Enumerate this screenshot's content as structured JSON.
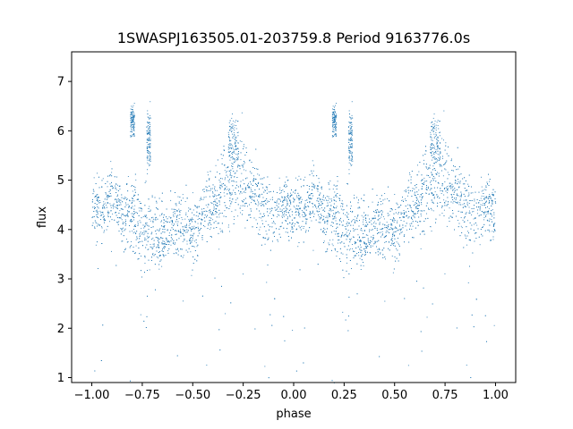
{
  "chart_data": {
    "type": "scatter",
    "title": "1SWASPJ163505.01-203759.8 Period 9163776.0s",
    "xlabel": "phase",
    "ylabel": "flux",
    "xlim": [
      -1.1,
      1.1
    ],
    "ylim": [
      0.9,
      7.6
    ],
    "x_ticks": [
      -1.0,
      -0.75,
      -0.5,
      -0.25,
      0.0,
      0.25,
      0.5,
      0.75,
      1.0
    ],
    "x_tick_labels": [
      "−1.00",
      "−0.75",
      "−0.50",
      "−0.25",
      "0.00",
      "0.25",
      "0.50",
      "0.75",
      "1.00"
    ],
    "y_ticks": [
      1,
      2,
      3,
      4,
      5,
      6,
      7
    ],
    "y_tick_labels": [
      "1",
      "2",
      "3",
      "4",
      "5",
      "6",
      "7"
    ],
    "grid": false,
    "series_color": "#1f77b4",
    "profile": {
      "phase": [
        0.0,
        0.05,
        0.1,
        0.15,
        0.2,
        0.25,
        0.3,
        0.35,
        0.4,
        0.45,
        0.5,
        0.55,
        0.6,
        0.65,
        0.7,
        0.75,
        0.8,
        0.85,
        0.9,
        0.95,
        1.0
      ],
      "flux": [
        4.4,
        4.4,
        4.7,
        4.2,
        4.3,
        4.0,
        4.0,
        3.9,
        4.1,
        4.2,
        3.8,
        4.4,
        4.5,
        4.8,
        5.1,
        5.0,
        4.7,
        4.4,
        4.3,
        4.5,
        4.3
      ],
      "scatter": [
        0.5,
        0.6,
        0.5,
        0.6,
        0.7,
        0.8,
        0.7,
        0.6,
        0.6,
        0.6,
        0.6,
        0.6,
        0.6,
        0.7,
        0.8,
        0.8,
        0.7,
        0.6,
        0.6,
        0.6,
        0.5
      ]
    },
    "clusters": [
      {
        "phase": 0.2,
        "flux": 6.2,
        "width": 0.02,
        "spread": 0.4
      },
      {
        "phase": 0.28,
        "flux": 5.8,
        "width": 0.02,
        "spread": 0.7
      },
      {
        "phase": 0.7,
        "flux": 5.8,
        "width": 0.05,
        "spread": 0.6
      }
    ]
  }
}
